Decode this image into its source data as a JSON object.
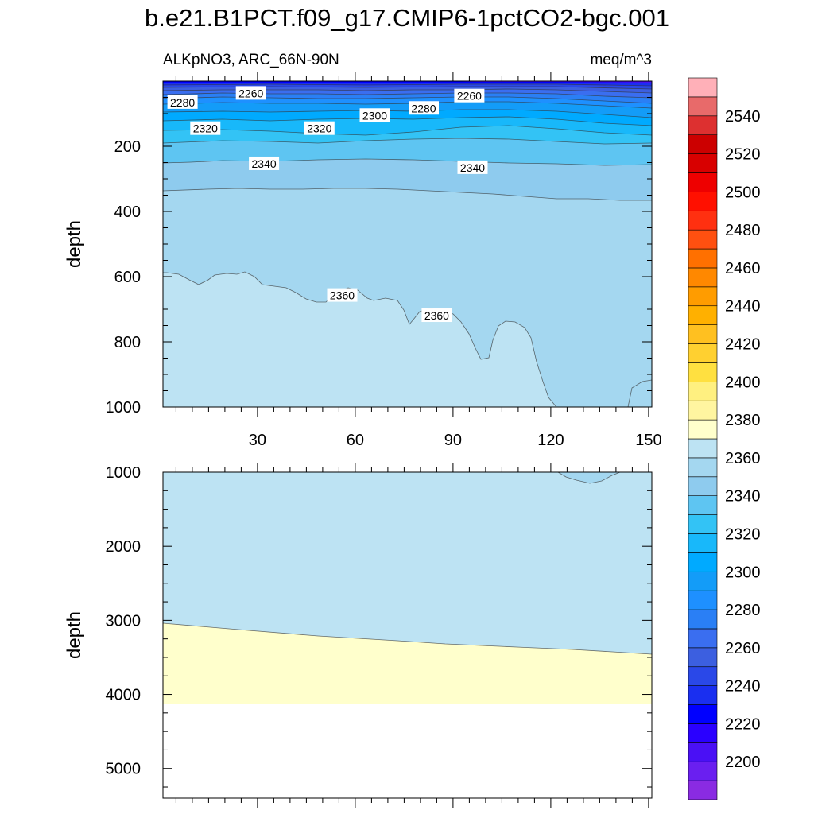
{
  "chart_data": {
    "type": "contour",
    "title": "b.e21.B1PCT.f09_g17.CMIP6-1pctCO2-bgc.001",
    "variable_label": "ALKpNO3, ARC_66N-90N",
    "units_label": "meq/m^3",
    "xticks": [
      "30",
      "60",
      "90",
      "120",
      "150"
    ],
    "x_values": [
      30,
      60,
      90,
      120,
      150
    ],
    "xlim": [
      1,
      151
    ],
    "panels": [
      {
        "name": "upper",
        "ylabel": "depth",
        "ylim": [
          0,
          1000
        ],
        "yticks": [
          "200",
          "400",
          "600",
          "800",
          "1000"
        ],
        "y_values": [
          200,
          400,
          600,
          800,
          1000
        ],
        "contour_labels": [
          {
            "text": "2260",
            "x": 28,
            "y": 40
          },
          {
            "text": "2280",
            "x": 7,
            "y": 68
          },
          {
            "text": "2260",
            "x": 95,
            "y": 48
          },
          {
            "text": "2300",
            "x": 66,
            "y": 108
          },
          {
            "text": "2280",
            "x": 81,
            "y": 86
          },
          {
            "text": "2320",
            "x": 14,
            "y": 148
          },
          {
            "text": "2320",
            "x": 49,
            "y": 148
          },
          {
            "text": "2340",
            "x": 32,
            "y": 256
          },
          {
            "text": "2340",
            "x": 96,
            "y": 268
          },
          {
            "text": "2360",
            "x": 56,
            "y": 660
          },
          {
            "text": "2360",
            "x": 85,
            "y": 722
          }
        ]
      },
      {
        "name": "lower",
        "ylabel": "depth",
        "ylim": [
          1000,
          5400
        ],
        "yticks": [
          "1000",
          "2000",
          "3000",
          "4000",
          "5000"
        ],
        "y_values": [
          1000,
          2000,
          3000,
          4000,
          5000
        ]
      }
    ],
    "colorbar": {
      "labels": [
        "2200",
        "2220",
        "2240",
        "2260",
        "2280",
        "2300",
        "2320",
        "2340",
        "2360",
        "2380",
        "2400",
        "2420",
        "2440",
        "2460",
        "2480",
        "2500",
        "2520",
        "2540"
      ],
      "level_values": [
        2190,
        2200,
        2210,
        2220,
        2230,
        2240,
        2250,
        2260,
        2270,
        2280,
        2290,
        2300,
        2310,
        2320,
        2330,
        2340,
        2350,
        2360,
        2370,
        2380,
        2390,
        2400,
        2410,
        2420,
        2430,
        2440,
        2450,
        2460,
        2470,
        2480,
        2490,
        2500,
        2510,
        2520,
        2530,
        2540,
        2550
      ],
      "colors": [
        "#8a2be2",
        "#6a1ff0",
        "#4a10f5",
        "#2a00ff",
        "#0000ff",
        "#1a2ff0",
        "#2a48e8",
        "#3c5fe0",
        "#3a6ef0",
        "#2a7ff5",
        "#1e90ff",
        "#139cf8",
        "#00aaff",
        "#18b8fa",
        "#33c3f5",
        "#5ec5f2",
        "#8ecbee",
        "#a4d7f0",
        "#bde3f3",
        "#ffffcc",
        "#fff5a0",
        "#fff080",
        "#ffe040",
        "#ffd030",
        "#ffc020",
        "#ffb000",
        "#ff9c00",
        "#ff8800",
        "#ff7000",
        "#ff5010",
        "#ff3010",
        "#ff1000",
        "#ee0000",
        "#d80000",
        "#cc0000",
        "#dd3030",
        "#e86a6a",
        "#ffb0b8"
      ]
    },
    "fill_colors": {
      "deep_2360_2370": "#bde3f3",
      "mid_2350_2360": "#a4d7f0",
      "mid_2340_2350": "#8ecbee",
      "bottom_2370_2380": "#ffffcc",
      "no_data": "#ffffff"
    }
  }
}
